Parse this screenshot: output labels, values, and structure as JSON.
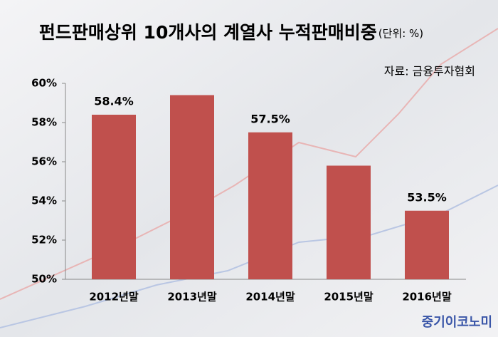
{
  "chart_data": {
    "type": "bar",
    "title": "펀드판매상위 10개사의 계열사 누적판매비중",
    "subtitle": "(단위: %)",
    "source": "자료: 금융투자협회",
    "watermark": "중기이코노미",
    "categories": [
      "2012년말",
      "2013년말",
      "2014년말",
      "2015년말",
      "2016년말"
    ],
    "values": [
      58.4,
      59.4,
      57.5,
      55.8,
      53.5
    ],
    "value_labels": [
      "58.4%",
      null,
      "57.5%",
      null,
      "53.5%"
    ],
    "color": "#c0504d",
    "ylim": [
      50,
      60
    ],
    "yticks": [
      {
        "value": 50,
        "label": "50%"
      },
      {
        "value": 52,
        "label": "52%"
      },
      {
        "value": 54,
        "label": "54%"
      },
      {
        "value": 56,
        "label": "56%"
      },
      {
        "value": 58,
        "label": "58%"
      },
      {
        "value": 60,
        "label": "60%"
      }
    ],
    "grid": false
  }
}
